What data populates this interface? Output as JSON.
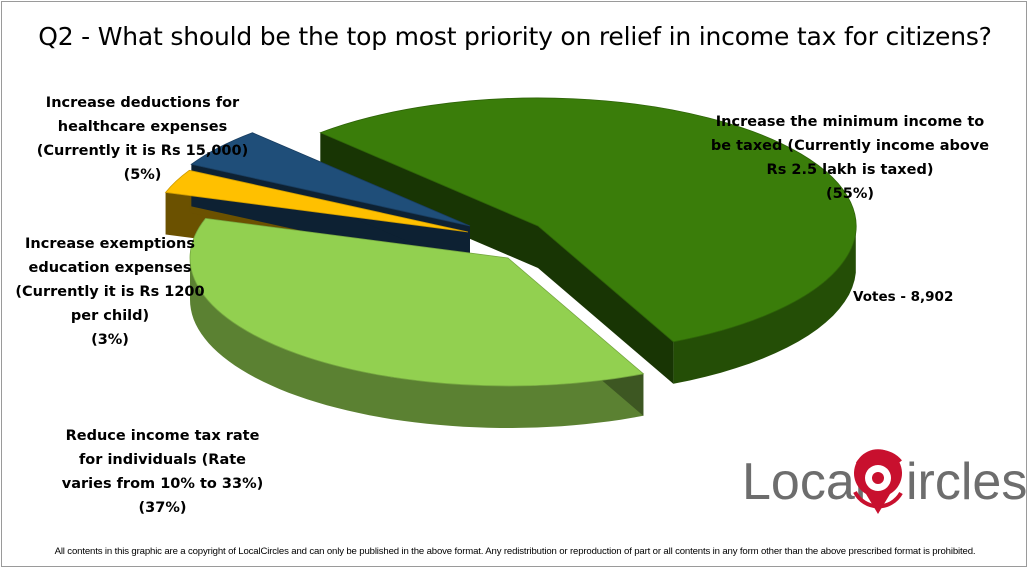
{
  "chart_data": {
    "type": "pie",
    "title": "Q2 - What should be the top most priority on relief in income tax for citizens?",
    "slices": [
      {
        "key": "increase_min_income",
        "label_lines": [
          "Increase the minimum income to",
          "be taxed (Currently income above",
          "Rs 2.5 lakh is taxed)",
          "(55%)"
        ],
        "value": 55,
        "color": "#3a7d0a"
      },
      {
        "key": "reduce_rate",
        "label_lines": [
          "Reduce income tax rate",
          "for individuals (Rate",
          "varies from 10% to 33%)",
          "(37%)"
        ],
        "value": 37,
        "color": "#92d050"
      },
      {
        "key": "education_exemptions",
        "label_lines": [
          "Increase exemptions",
          "education expenses",
          "(Currently it is Rs 1200",
          "per child)",
          "(3%)"
        ],
        "value": 3,
        "color": "#ffc000"
      },
      {
        "key": "healthcare_deductions",
        "label_lines": [
          "Increase deductions for",
          "healthcare expenses",
          "(Currently it is Rs 15,000)",
          "(5%)"
        ],
        "value": 5,
        "color": "#1f4e79"
      }
    ]
  },
  "votes_text": "Votes - 8,902",
  "logo": {
    "left": "Local",
    "right": "ircles"
  },
  "footer": "All contents in this graphic are a copyright of LocalCircles and can only be published in the above format. Any redistribution or reproduction of part or all contents in any form other than the above prescribed format is prohibited."
}
